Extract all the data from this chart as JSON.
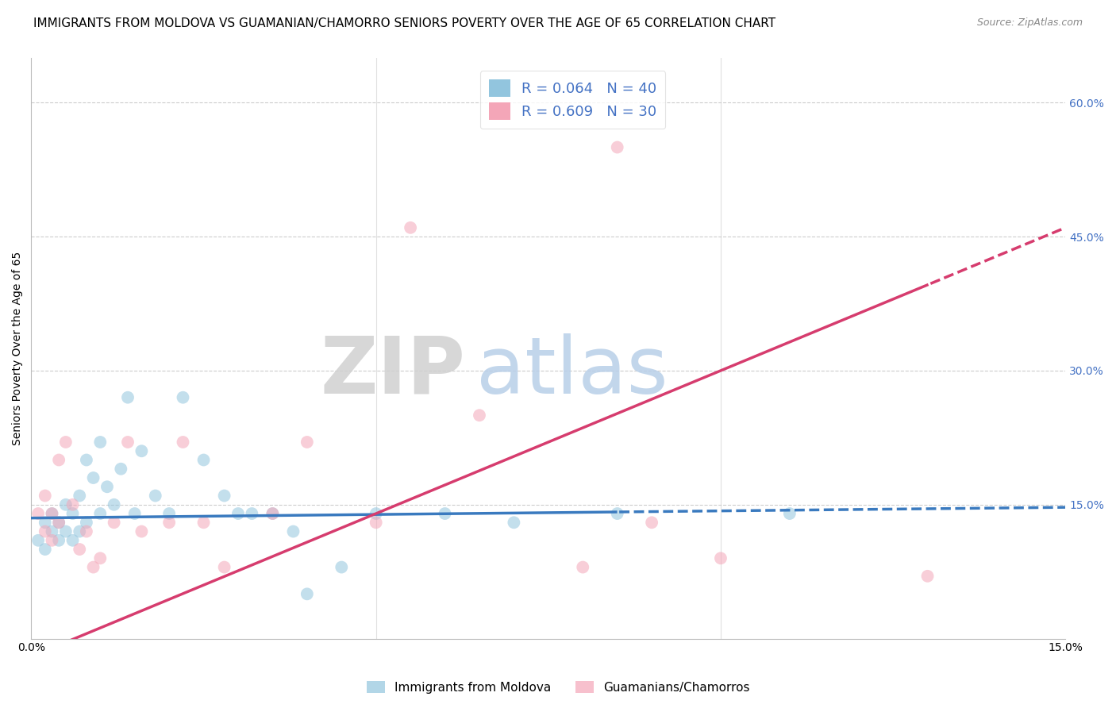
{
  "title": "IMMIGRANTS FROM MOLDOVA VS GUAMANIAN/CHAMORRO SENIORS POVERTY OVER THE AGE OF 65 CORRELATION CHART",
  "source": "Source: ZipAtlas.com",
  "ylabel": "Seniors Poverty Over the Age of 65",
  "legend_labels": [
    "Immigrants from Moldova",
    "Guamanians/Chamorros"
  ],
  "blue_color": "#92c5de",
  "pink_color": "#f4a6b8",
  "blue_line_color": "#3a7abf",
  "pink_line_color": "#d63c6e",
  "background_color": "#ffffff",
  "grid_color": "#cccccc",
  "moldova_x": [
    0.001,
    0.002,
    0.002,
    0.003,
    0.003,
    0.004,
    0.004,
    0.005,
    0.005,
    0.006,
    0.006,
    0.007,
    0.007,
    0.008,
    0.008,
    0.009,
    0.01,
    0.01,
    0.011,
    0.012,
    0.013,
    0.014,
    0.015,
    0.016,
    0.018,
    0.02,
    0.022,
    0.025,
    0.028,
    0.03,
    0.032,
    0.035,
    0.038,
    0.04,
    0.045,
    0.05,
    0.06,
    0.07,
    0.085,
    0.11
  ],
  "moldova_y": [
    0.11,
    0.13,
    0.1,
    0.12,
    0.14,
    0.11,
    0.13,
    0.12,
    0.15,
    0.11,
    0.14,
    0.12,
    0.16,
    0.13,
    0.2,
    0.18,
    0.22,
    0.14,
    0.17,
    0.15,
    0.19,
    0.27,
    0.14,
    0.21,
    0.16,
    0.14,
    0.27,
    0.2,
    0.16,
    0.14,
    0.14,
    0.14,
    0.12,
    0.05,
    0.08,
    0.14,
    0.14,
    0.13,
    0.14,
    0.14
  ],
  "guam_x": [
    0.001,
    0.002,
    0.002,
    0.003,
    0.003,
    0.004,
    0.004,
    0.005,
    0.006,
    0.007,
    0.008,
    0.009,
    0.01,
    0.012,
    0.014,
    0.016,
    0.02,
    0.022,
    0.025,
    0.028,
    0.035,
    0.04,
    0.05,
    0.055,
    0.065,
    0.08,
    0.085,
    0.09,
    0.1,
    0.13
  ],
  "guam_y": [
    0.14,
    0.12,
    0.16,
    0.11,
    0.14,
    0.13,
    0.2,
    0.22,
    0.15,
    0.1,
    0.12,
    0.08,
    0.09,
    0.13,
    0.22,
    0.12,
    0.13,
    0.22,
    0.13,
    0.08,
    0.14,
    0.22,
    0.13,
    0.46,
    0.25,
    0.08,
    0.55,
    0.13,
    0.09,
    0.07
  ],
  "xlim": [
    0.0,
    0.15
  ],
  "ylim": [
    0.0,
    0.65
  ],
  "title_fontsize": 11,
  "axis_fontsize": 10,
  "marker_size": 130,
  "blue_line_solid_end": 0.085,
  "pink_line_solid_end": 0.13,
  "blue_line_intercept": 0.135,
  "blue_line_slope": 0.08,
  "pink_line_intercept": -0.02,
  "pink_line_slope": 3.2
}
